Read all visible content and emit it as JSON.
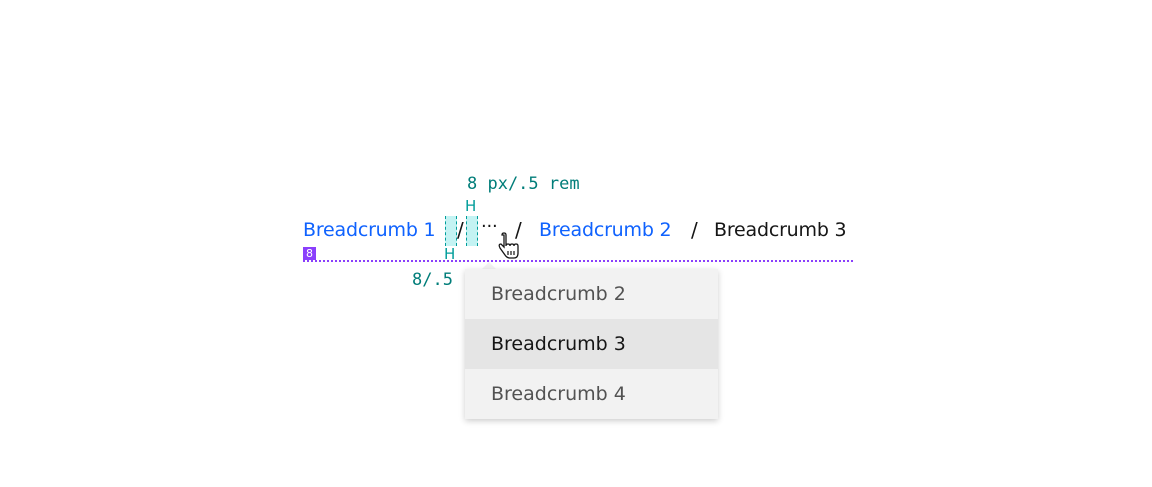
{
  "annotations": {
    "top_spacing": "8 px/.5 rem",
    "bottom_spacing": "8/.5",
    "badge": "8"
  },
  "breadcrumb": {
    "items": [
      "Breadcrumb 1",
      "Breadcrumb 2",
      "Breadcrumb 3"
    ],
    "separator": "/",
    "overflow": "···"
  },
  "menu": {
    "items": [
      "Breadcrumb 2",
      "Breadcrumb 3",
      "Breadcrumb 4"
    ],
    "selected": "Breadcrumb 3"
  },
  "colors": {
    "link": "#0f62fe",
    "annotation": "#007d79",
    "baseline": "#8a3ffc"
  }
}
